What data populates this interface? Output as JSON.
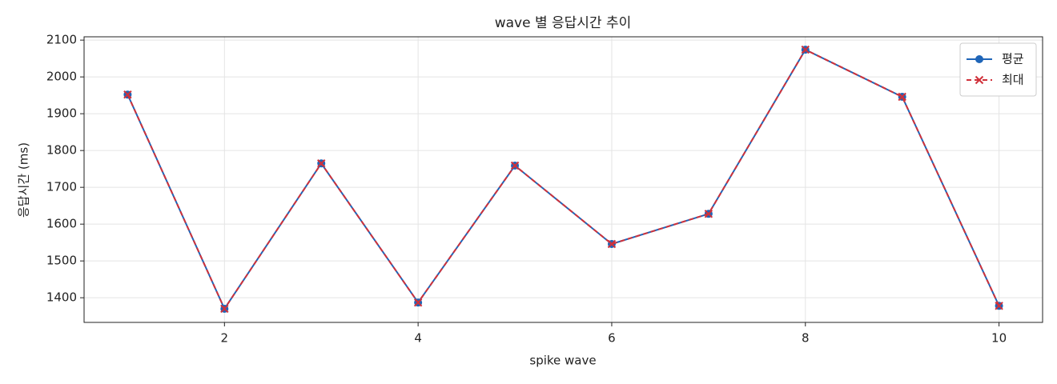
{
  "chart_data": {
    "type": "line",
    "title": "wave 별 응답시간 추이",
    "x_label": "spike wave",
    "y_label": "응답시간 (ms)",
    "x": [
      1,
      2,
      3,
      4,
      5,
      6,
      7,
      8,
      9,
      10
    ],
    "series": [
      {
        "name": "평균",
        "color": "#1f65b8",
        "linestyle": "solid",
        "marker": "circle",
        "values": [
          1952,
          1370,
          1765,
          1387,
          1759,
          1546,
          1628,
          2074,
          1946,
          1378
        ]
      },
      {
        "name": "최대",
        "color": "#d0313a",
        "linestyle": "dashed",
        "marker": "x",
        "values": [
          1952,
          1370,
          1765,
          1387,
          1759,
          1546,
          1628,
          2074,
          1946,
          1378
        ]
      }
    ],
    "xlim": [
      0.55,
      10.45
    ],
    "xticks": [
      2,
      4,
      6,
      8,
      10
    ],
    "ylim": [
      1333,
      2109
    ],
    "yticks": [
      1400,
      1500,
      1600,
      1700,
      1800,
      1900,
      2000,
      2100
    ],
    "grid": true,
    "legend": "upper right"
  }
}
